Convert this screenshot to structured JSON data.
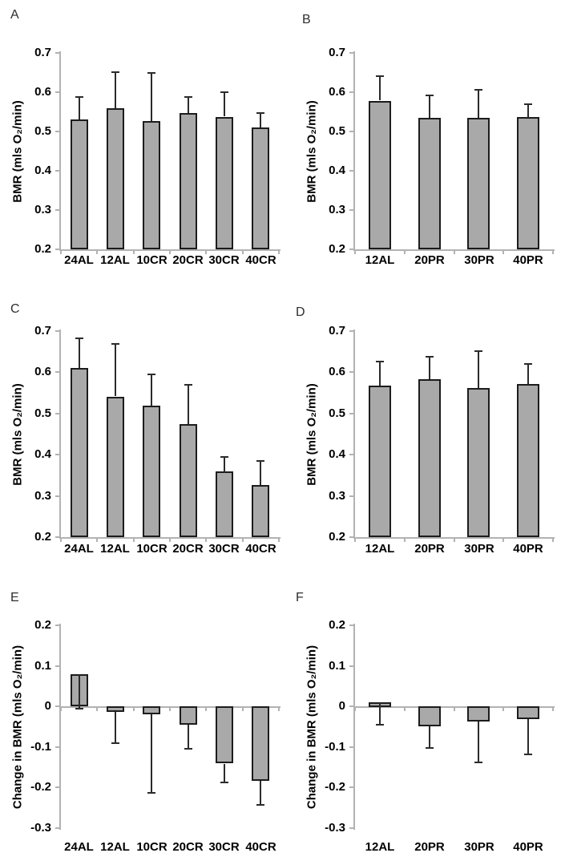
{
  "figure": {
    "background": "#ffffff",
    "bar_fill": "#a9a9a9",
    "bar_border": "#1c1c1c",
    "axis_color": "#b2b2b2",
    "error_bar_color": "#2b2b2b",
    "text_color": "#000000"
  },
  "chart_data": [
    {
      "type": "bar",
      "panel_label": "A",
      "categories": [
        "24AL",
        "12AL",
        "10CR",
        "20CR",
        "30CR",
        "40CR"
      ],
      "values": [
        0.53,
        0.559,
        0.527,
        0.547,
        0.537,
        0.51
      ],
      "errors": [
        0.057,
        0.092,
        0.122,
        0.04,
        0.062,
        0.037
      ],
      "error_dir": "up",
      "xlabel": "",
      "ylabel": "BMR (mls O₂/min)",
      "ylim": [
        0.2,
        0.7
      ],
      "ytick_labels": [
        "0.7",
        "0.6",
        "0.5",
        "0.4",
        "0.3",
        "0.2"
      ],
      "grid": false,
      "legend": null
    },
    {
      "type": "bar",
      "panel_label": "B",
      "categories": [
        "12AL",
        "20PR",
        "30PR",
        "40PR"
      ],
      "values": [
        0.578,
        0.534,
        0.535,
        0.536
      ],
      "errors": [
        0.062,
        0.058,
        0.072,
        0.034
      ],
      "error_dir": "up",
      "xlabel": "",
      "ylabel": "BMR (mls O₂/min)",
      "ylim": [
        0.2,
        0.7
      ],
      "ytick_labels": [
        "0.7",
        "0.6",
        "0.5",
        "0.4",
        "0.3",
        "0.2"
      ],
      "grid": false,
      "legend": null
    },
    {
      "type": "bar",
      "panel_label": "C",
      "categories": [
        "24AL",
        "12AL",
        "10CR",
        "20CR",
        "30CR",
        "40CR"
      ],
      "values": [
        0.61,
        0.541,
        0.519,
        0.474,
        0.359,
        0.326
      ],
      "errors": [
        0.072,
        0.127,
        0.076,
        0.095,
        0.036,
        0.059
      ],
      "error_dir": "up",
      "xlabel": "",
      "ylabel": "BMR (mls O₂/min)",
      "ylim": [
        0.2,
        0.7
      ],
      "ytick_labels": [
        "0.7",
        "0.6",
        "0.5",
        "0.4",
        "0.3",
        "0.2"
      ],
      "grid": false,
      "legend": null
    },
    {
      "type": "bar",
      "panel_label": "D",
      "categories": [
        "12AL",
        "20PR",
        "30PR",
        "40PR"
      ],
      "values": [
        0.567,
        0.583,
        0.562,
        0.572
      ],
      "errors": [
        0.059,
        0.055,
        0.09,
        0.048
      ],
      "error_dir": "up",
      "xlabel": "",
      "ylabel": "BMR (mls O₂/min)",
      "ylim": [
        0.2,
        0.7
      ],
      "ytick_labels": [
        "0.7",
        "0.6",
        "0.5",
        "0.4",
        "0.3",
        "0.2"
      ],
      "grid": false,
      "legend": null
    },
    {
      "type": "bar",
      "panel_label": "E",
      "categories": [
        "24AL",
        "12AL",
        "10CR",
        "20CR",
        "30CR",
        "40CR"
      ],
      "values": [
        0.079,
        -0.014,
        -0.02,
        -0.045,
        -0.141,
        -0.184
      ],
      "errors": [
        0.084,
        0.077,
        0.194,
        0.06,
        0.047,
        0.058
      ],
      "error_dir": "down",
      "xlabel": "",
      "ylabel": "Change in BMR (mls O₂/min)",
      "ylim": [
        -0.3,
        0.2
      ],
      "ytick_labels": [
        "0.2",
        "0.1",
        "0",
        "-0.1",
        "-0.2",
        "-0.3"
      ],
      "grid": false,
      "legend": null
    },
    {
      "type": "bar",
      "panel_label": "F",
      "categories": [
        "12AL",
        "20PR",
        "30PR",
        "40PR"
      ],
      "values": [
        0.011,
        -0.049,
        -0.038,
        -0.031
      ],
      "errors": [
        0.056,
        0.054,
        0.1,
        0.087
      ],
      "error_dir": "down",
      "xlabel": "",
      "ylabel": "Change in BMR (mls O₂/min)",
      "ylim": [
        -0.3,
        0.2
      ],
      "ytick_labels": [
        "0.2",
        "0.1",
        "0",
        "-0.1",
        "-0.2",
        "-0.3"
      ],
      "grid": false,
      "legend": null
    }
  ]
}
